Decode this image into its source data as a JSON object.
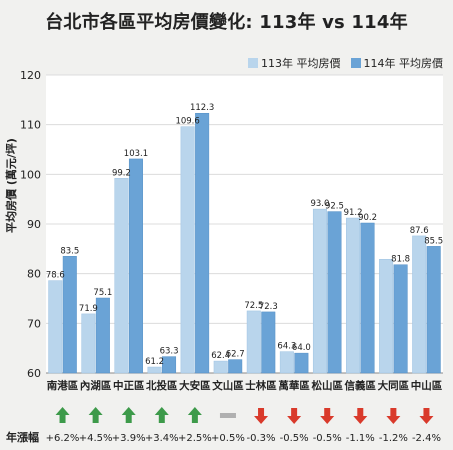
{
  "colors": {
    "series_113": "#b9d5ec",
    "series_114": "#6aa3d6",
    "up": "#3d9a4a",
    "flat": "#b0b0b0",
    "down": "#d93a2b"
  },
  "change_row_label": "年漲幅",
  "chart_data": {
    "type": "bar",
    "title": "台北市各區平均房價變化: 113年 vs 114年",
    "xlabel": "",
    "ylabel": "平均房價 (萬元/坪)",
    "ylim": [
      60,
      120
    ],
    "yticks": [
      60,
      70,
      80,
      90,
      100,
      110,
      120
    ],
    "grid": true,
    "legend_position": "top-right",
    "categories": [
      "南港區",
      "內湖區",
      "中正區",
      "北投區",
      "大安區",
      "文山區",
      "士林區",
      "萬華區",
      "松山區",
      "信義區",
      "大同區",
      "中山區"
    ],
    "series": [
      {
        "name": "113年 平均房價",
        "values": [
          78.6,
          71.9,
          99.2,
          61.2,
          109.6,
          62.4,
          72.5,
          64.3,
          93.0,
          91.2,
          82.9,
          87.6
        ]
      },
      {
        "name": "114年 平均房價",
        "values": [
          83.5,
          75.1,
          103.1,
          63.3,
          112.3,
          62.7,
          72.3,
          64.0,
          92.5,
          90.2,
          81.8,
          85.5
        ]
      }
    ],
    "data_labels_113": [
      "78.6",
      "71.9",
      "99.2",
      "61.2",
      "109.6",
      "62.4",
      "72.5",
      "64.3",
      "93.0",
      "91.2",
      "",
      "87.6"
    ],
    "data_labels_114": [
      "83.5",
      "75.1",
      "103.1",
      "63.3",
      "112.3",
      "62.7",
      "72.3",
      "64.0",
      "92.5",
      "90.2",
      "81.8",
      "85.5"
    ],
    "annual_change": [
      "+6.2%",
      "+4.5%",
      "+3.9%",
      "+3.4%",
      "+2.5%",
      "+0.5%",
      "-0.3%",
      "-0.5%",
      "-0.5%",
      "-1.1%",
      "-1.2%",
      "-2.4%"
    ],
    "change_direction": [
      "up",
      "up",
      "up",
      "up",
      "up",
      "flat",
      "down",
      "down",
      "down",
      "down",
      "down",
      "down"
    ]
  }
}
